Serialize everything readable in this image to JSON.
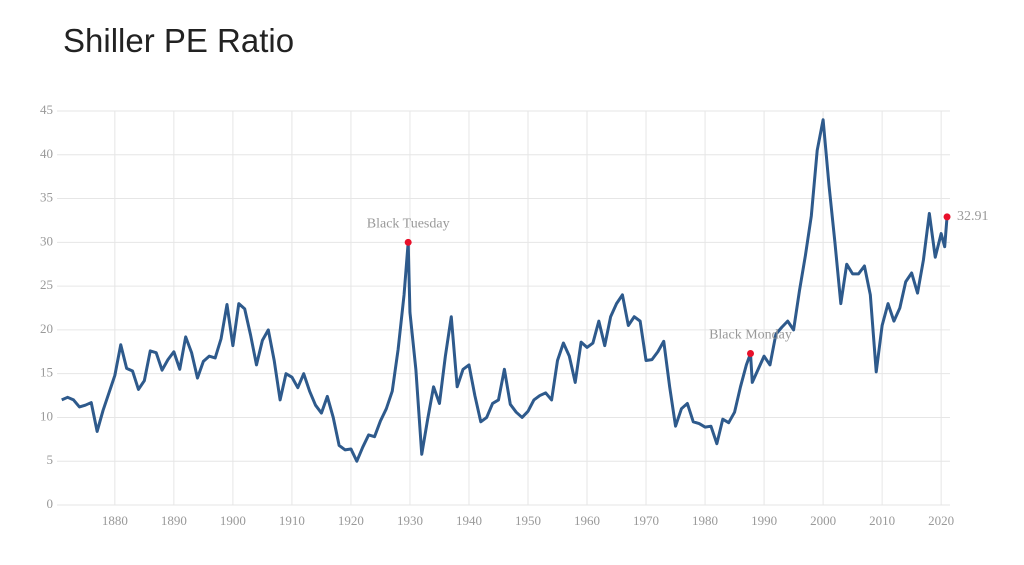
{
  "chart_data": {
    "type": "line",
    "title": "Shiller PE Ratio",
    "color": "#2e5a8c",
    "highlight_color": "#e8102a",
    "grid": true,
    "xlim": [
      1870.2,
      2021.5
    ],
    "ylim": [
      0,
      45
    ],
    "xticks": [
      1880,
      1890,
      1900,
      1910,
      1920,
      1930,
      1940,
      1950,
      1960,
      1970,
      1980,
      1990,
      2000,
      2010,
      2020
    ],
    "yticks": [
      0,
      5,
      10,
      15,
      20,
      25,
      30,
      35,
      40,
      45
    ],
    "x": [
      1871,
      1872,
      1873,
      1874,
      1875,
      1876,
      1877,
      1878,
      1879,
      1880,
      1881,
      1882,
      1883,
      1884,
      1885,
      1886,
      1887,
      1888,
      1889,
      1890,
      1891,
      1892,
      1893,
      1894,
      1895,
      1896,
      1897,
      1898,
      1899,
      1900,
      1901,
      1902,
      1903,
      1904,
      1905,
      1906,
      1907,
      1908,
      1909,
      1910,
      1911,
      1912,
      1913,
      1914,
      1915,
      1916,
      1917,
      1918,
      1919,
      1920,
      1921,
      1922,
      1923,
      1924,
      1925,
      1926,
      1927,
      1928,
      1929,
      1929.7,
      1930,
      1931,
      1932,
      1933,
      1934,
      1935,
      1936,
      1937,
      1938,
      1939,
      1940,
      1941,
      1942,
      1943,
      1944,
      1945,
      1946,
      1947,
      1948,
      1949,
      1950,
      1951,
      1952,
      1953,
      1954,
      1955,
      1956,
      1957,
      1958,
      1959,
      1960,
      1961,
      1962,
      1963,
      1964,
      1965,
      1966,
      1967,
      1968,
      1969,
      1970,
      1971,
      1972,
      1973,
      1974,
      1975,
      1976,
      1977,
      1978,
      1979,
      1980,
      1981,
      1982,
      1983,
      1984,
      1985,
      1986,
      1987,
      1987.7,
      1988,
      1989,
      1990,
      1991,
      1992,
      1993,
      1994,
      1995,
      1996,
      1997,
      1998,
      1999,
      2000,
      2001,
      2002,
      2003,
      2004,
      2005,
      2006,
      2007,
      2008,
      2009,
      2010,
      2011,
      2012,
      2013,
      2014,
      2015,
      2016,
      2017,
      2018,
      2019,
      2020,
      2020.6,
      2021
    ],
    "values": [
      12.0,
      12.3,
      12.0,
      11.2,
      11.4,
      11.7,
      8.4,
      10.8,
      12.8,
      14.8,
      18.3,
      15.6,
      15.3,
      13.2,
      14.2,
      17.6,
      17.4,
      15.4,
      16.6,
      17.5,
      15.5,
      19.2,
      17.4,
      14.5,
      16.4,
      17.0,
      16.8,
      19.0,
      22.9,
      18.2,
      23.0,
      22.4,
      19.4,
      16.0,
      18.8,
      20.0,
      16.5,
      12.0,
      15.0,
      14.6,
      13.4,
      15.0,
      13.0,
      11.4,
      10.5,
      12.4,
      10.0,
      6.8,
      6.3,
      6.4,
      5.0,
      6.6,
      8.0,
      7.8,
      9.6,
      11.0,
      13.0,
      17.8,
      24.0,
      30.0,
      22.0,
      15.5,
      5.8,
      9.8,
      13.5,
      11.6,
      17.0,
      21.5,
      13.5,
      15.5,
      16.0,
      12.5,
      9.5,
      10.0,
      11.6,
      12.0,
      15.5,
      11.5,
      10.6,
      10.0,
      10.7,
      12.0,
      12.5,
      12.8,
      12.0,
      16.5,
      18.5,
      17.0,
      14.0,
      18.6,
      18.0,
      18.5,
      21.0,
      18.2,
      21.5,
      23.0,
      24.0,
      20.5,
      21.5,
      21.0,
      16.5,
      16.6,
      17.5,
      18.7,
      13.5,
      9.0,
      11.0,
      11.6,
      9.5,
      9.3,
      8.9,
      9.0,
      7.0,
      9.8,
      9.4,
      10.6,
      13.5,
      16.0,
      17.3,
      14.0,
      15.5,
      17.0,
      16.0,
      19.5,
      20.3,
      21.0,
      20.0,
      24.5,
      28.5,
      33.0,
      40.5,
      44.0,
      36.5,
      30.0,
      23.0,
      27.5,
      26.4,
      26.4,
      27.3,
      24.0,
      15.2,
      20.5,
      23.0,
      21.0,
      22.5,
      25.5,
      26.5,
      24.2,
      28.0,
      33.3,
      28.3,
      31.0,
      29.5,
      32.91
    ],
    "highlights": [
      {
        "label": "Black Tuesday",
        "x": 1929.7,
        "y": 30.0
      },
      {
        "label": "Black Monday",
        "x": 1987.7,
        "y": 17.3
      },
      {
        "x": 2021,
        "y": 32.91
      }
    ]
  }
}
